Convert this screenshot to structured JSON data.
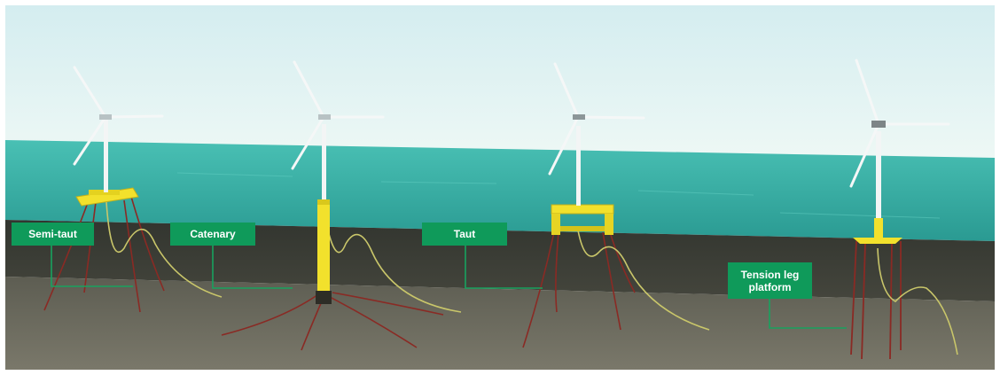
{
  "labels": {
    "semi_taut": "Semi-taut",
    "catenary": "Catenary",
    "taut": "Taut",
    "tension_leg": "Tension leg\nplatform"
  },
  "colors": {
    "sky_top": "#d7eef1",
    "sky_bottom": "#eaf6f4",
    "sea_surface": "#3fb8ad",
    "water_body": "#1f6f66",
    "subsurface": "#3a3d36",
    "seabed": "#6c6b5e",
    "float_yellow": "#f2e12c",
    "mooring_red": "#8a2a24",
    "cable_yellow": "#c9c66a",
    "label_green": "#0f9a5a",
    "leader_green": "#18a25f"
  }
}
